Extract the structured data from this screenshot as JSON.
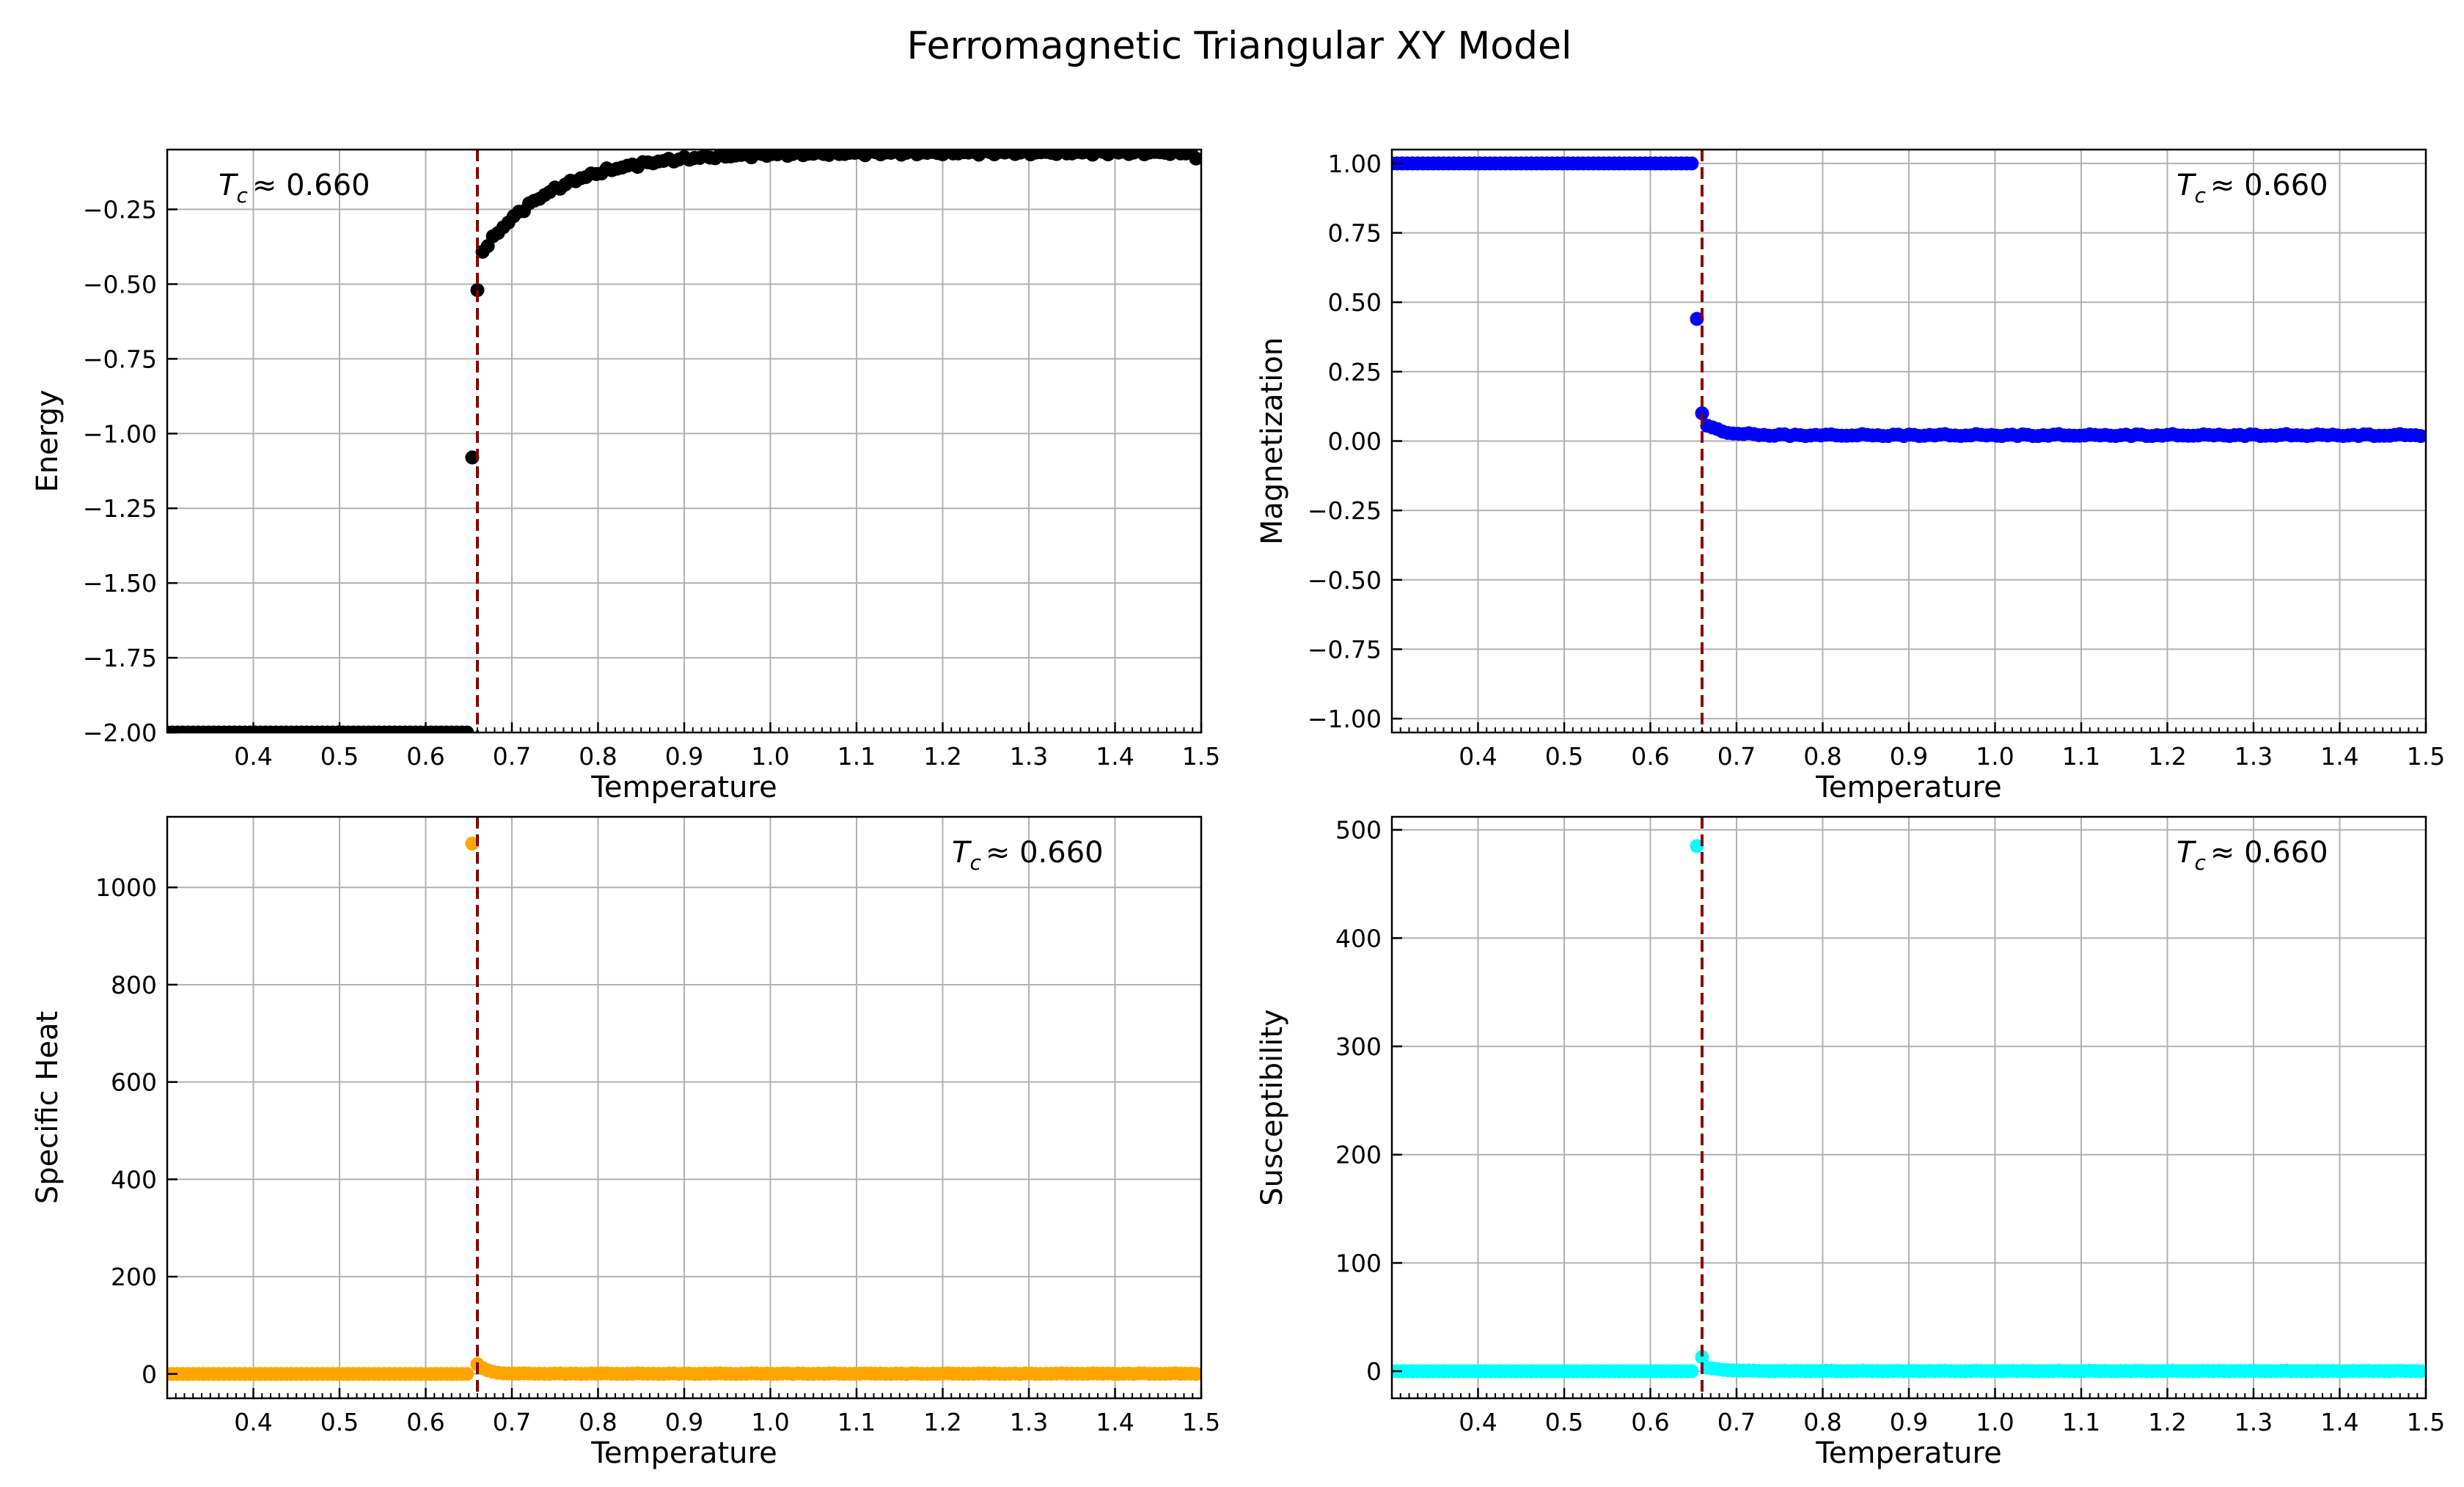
{
  "title": "Ferromagnetic Triangular XY Model",
  "colors": {
    "critical_line": "#8b0000",
    "grid": "#b0b0b0",
    "axes": "#000000"
  },
  "chart_data": [
    {
      "type": "scatter",
      "panel": "top-left",
      "xlabel": "Temperature",
      "ylabel": "Energy",
      "xlim": [
        0.3,
        1.5
      ],
      "ylim": [
        -2.0,
        -0.05
      ],
      "xticks": [
        0.4,
        0.5,
        0.6,
        0.7,
        0.8,
        0.9,
        1.0,
        1.1,
        1.2,
        1.3,
        1.4,
        1.5
      ],
      "xtick_labels": [
        "0.4",
        "0.5",
        "0.6",
        "0.7",
        "0.8",
        "0.9",
        "1.0",
        "1.1",
        "1.2",
        "1.3",
        "1.4",
        "1.5"
      ],
      "yticks": [
        -2.0,
        -1.75,
        -1.5,
        -1.25,
        -1.0,
        -0.75,
        -0.5,
        -0.25
      ],
      "ytick_labels": [
        "−2.00",
        "−1.75",
        "−1.50",
        "−1.25",
        "−1.00",
        "−0.75",
        "−0.50",
        "−0.25"
      ],
      "color": "#000000",
      "tc": 0.66,
      "tc_label": {
        "symbol": "T",
        "sub": "c",
        "text": "≈  0.660",
        "position": "top-left"
      },
      "grid": true,
      "series": [
        {
          "x": [],
          "y": []
        }
      ]
    },
    {
      "type": "scatter",
      "panel": "top-right",
      "xlabel": "Temperature",
      "ylabel": "Magnetization",
      "xlim": [
        0.3,
        1.5
      ],
      "ylim": [
        -1.05,
        1.05
      ],
      "xticks": [
        0.4,
        0.5,
        0.6,
        0.7,
        0.8,
        0.9,
        1.0,
        1.1,
        1.2,
        1.3,
        1.4,
        1.5
      ],
      "xtick_labels": [
        "0.4",
        "0.5",
        "0.6",
        "0.7",
        "0.8",
        "0.9",
        "1.0",
        "1.1",
        "1.2",
        "1.3",
        "1.4",
        "1.5"
      ],
      "yticks": [
        -1.0,
        -0.75,
        -0.5,
        -0.25,
        0.0,
        0.25,
        0.5,
        0.75,
        1.0
      ],
      "ytick_labels": [
        "−1.00",
        "−0.75",
        "−0.50",
        "−0.25",
        "0.00",
        "0.25",
        "0.50",
        "0.75",
        "1.00"
      ],
      "color": "#0000ff",
      "tc": 0.66,
      "tc_label": {
        "symbol": "T",
        "sub": "c",
        "text": "≈  0.660",
        "position": "top-right"
      },
      "grid": true,
      "series": [
        {
          "x": [],
          "y": []
        }
      ]
    },
    {
      "type": "scatter",
      "panel": "bottom-left",
      "xlabel": "Temperature",
      "ylabel": "Specific Heat",
      "xlim": [
        0.3,
        1.5
      ],
      "ylim": [
        -50,
        1145
      ],
      "xticks": [
        0.4,
        0.5,
        0.6,
        0.7,
        0.8,
        0.9,
        1.0,
        1.1,
        1.2,
        1.3,
        1.4,
        1.5
      ],
      "xtick_labels": [
        "0.4",
        "0.5",
        "0.6",
        "0.7",
        "0.8",
        "0.9",
        "1.0",
        "1.1",
        "1.2",
        "1.3",
        "1.4",
        "1.5"
      ],
      "yticks": [
        0,
        200,
        400,
        600,
        800,
        1000
      ],
      "ytick_labels": [
        "0",
        "200",
        "400",
        "600",
        "800",
        "1000"
      ],
      "color": "#ffa500",
      "tc": 0.66,
      "tc_label": {
        "symbol": "T",
        "sub": "c",
        "text": "≈  0.660",
        "position": "top-right"
      },
      "grid": true,
      "series": [
        {
          "x": [],
          "y": []
        }
      ]
    },
    {
      "type": "scatter",
      "panel": "bottom-right",
      "xlabel": "Temperature",
      "ylabel": "Susceptibility",
      "xlim": [
        0.3,
        1.5
      ],
      "ylim": [
        -25,
        512
      ],
      "xticks": [
        0.4,
        0.5,
        0.6,
        0.7,
        0.8,
        0.9,
        1.0,
        1.1,
        1.2,
        1.3,
        1.4,
        1.5
      ],
      "xtick_labels": [
        "0.4",
        "0.5",
        "0.6",
        "0.7",
        "0.8",
        "0.9",
        "1.0",
        "1.1",
        "1.2",
        "1.3",
        "1.4",
        "1.5"
      ],
      "yticks": [
        0,
        100,
        200,
        300,
        400,
        500
      ],
      "ytick_labels": [
        "0",
        "100",
        "200",
        "300",
        "400",
        "500"
      ],
      "color": "#00ffff",
      "tc": 0.66,
      "tc_label": {
        "symbol": "T",
        "sub": "c",
        "text": "≈  0.660",
        "position": "top-right"
      },
      "grid": true,
      "series": [
        {
          "x": [],
          "y": []
        }
      ]
    }
  ]
}
